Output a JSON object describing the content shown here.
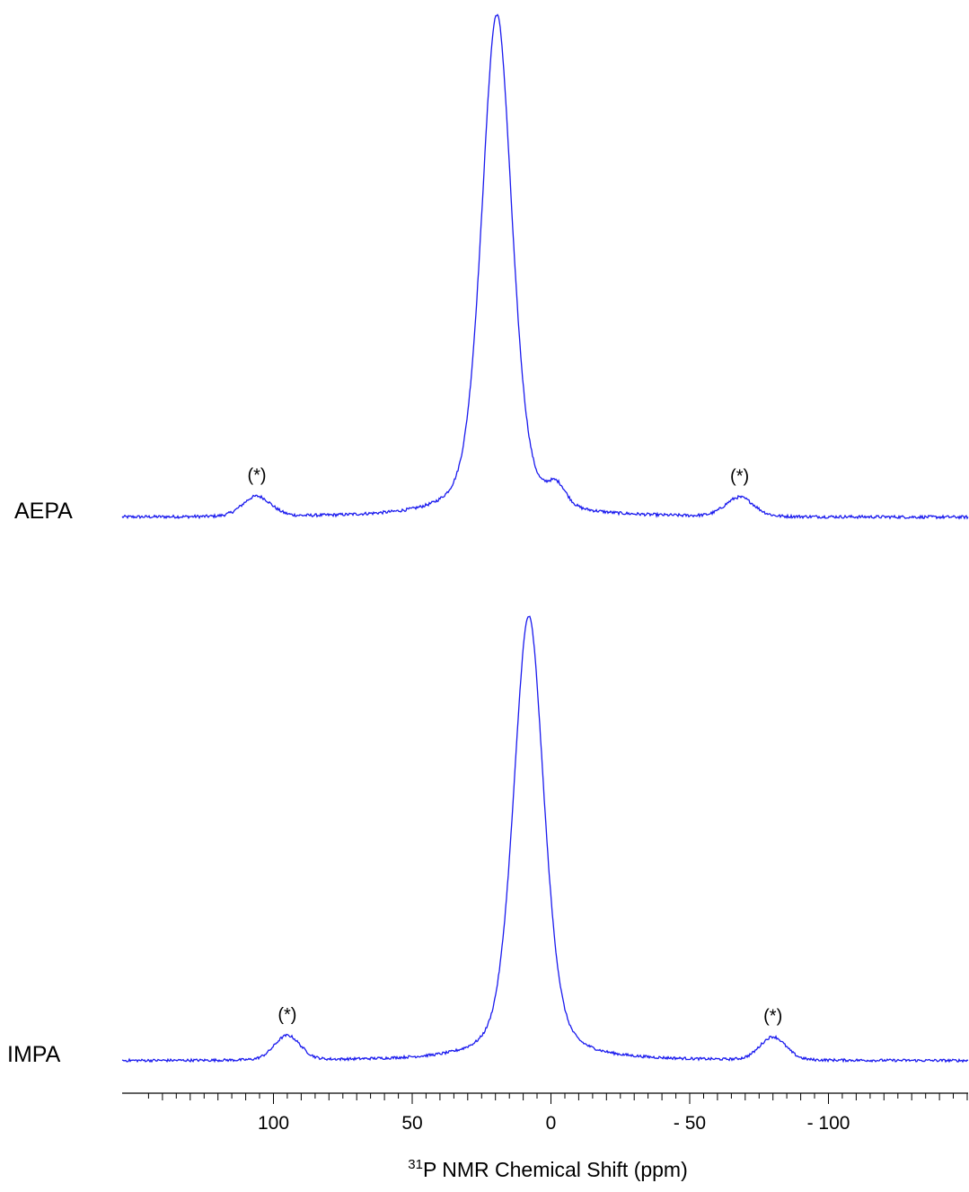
{
  "chart_data": {
    "type": "line",
    "xlabel": {
      "sup": "31",
      "text": "P NMR Chemical Shift (ppm)"
    },
    "xlim": [
      150,
      -150
    ],
    "x_reversed": true,
    "xticks": [
      100,
      50,
      0,
      -50,
      -100
    ],
    "xtick_labels": [
      "100",
      "50",
      "0",
      "- 50",
      "- 100"
    ],
    "minor_tick_step": 10,
    "grid": false,
    "legend": "none",
    "line_color": "#1a1aee",
    "series": [
      {
        "name": "AEPA",
        "peaks": [
          {
            "center": 19.5,
            "height": 1.0,
            "width": 6.5
          },
          {
            "center": -2,
            "height": 0.04,
            "width": 4
          },
          {
            "center": 106,
            "height": 0.04,
            "width": 6
          },
          {
            "center": -68,
            "height": 0.038,
            "width": 6
          }
        ],
        "annotations": [
          {
            "x": 106,
            "text": "(*)"
          },
          {
            "x": -68,
            "text": "(*)"
          }
        ]
      },
      {
        "name": "IMPA",
        "peaks": [
          {
            "center": 8,
            "height": 1.0,
            "width": 6.5
          },
          {
            "center": 95,
            "height": 0.055,
            "width": 5.5
          },
          {
            "center": -80,
            "height": 0.052,
            "width": 5.5
          }
        ],
        "annotations": [
          {
            "x": 95,
            "text": "(*)"
          },
          {
            "x": -80,
            "text": "(*)"
          }
        ]
      }
    ]
  }
}
